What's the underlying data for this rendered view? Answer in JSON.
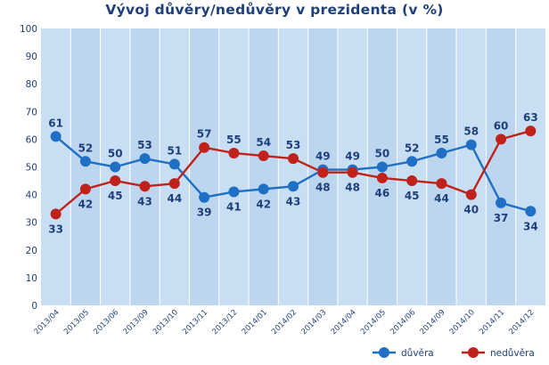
{
  "chart_data": {
    "type": "line",
    "title": "Vývoj důvěry/nedůvěry v prezidenta (v %)",
    "xlabel": "",
    "ylabel": "",
    "ylim": [
      0,
      100
    ],
    "yticks": [
      0,
      10,
      20,
      30,
      40,
      50,
      60,
      70,
      80,
      90,
      100
    ],
    "grid": "vertical-bands",
    "legend_position": "bottom-right",
    "categories": [
      "2013/04",
      "2013/05",
      "2013/06",
      "2013/09",
      "2013/10",
      "2013/11",
      "2013/12",
      "2014/01",
      "2014/02",
      "2014/03",
      "2014/04",
      "2014/05",
      "2014/06",
      "2014/09",
      "2014/10",
      "2014/11",
      "2014/12"
    ],
    "series": [
      {
        "name": "důvěra",
        "color": "#1f6fc4",
        "values": [
          61,
          52,
          50,
          53,
          51,
          39,
          41,
          42,
          43,
          49,
          49,
          50,
          52,
          55,
          58,
          37,
          34
        ]
      },
      {
        "name": "nedůvěra",
        "color": "#c0211b",
        "values": [
          33,
          42,
          45,
          43,
          44,
          57,
          55,
          54,
          53,
          48,
          48,
          46,
          45,
          44,
          40,
          60,
          63
        ]
      }
    ],
    "colors": {
      "plot_band_light": "#c8dff3",
      "plot_band_dark": "#bcd6ef",
      "text": "#1f3f7a"
    }
  }
}
